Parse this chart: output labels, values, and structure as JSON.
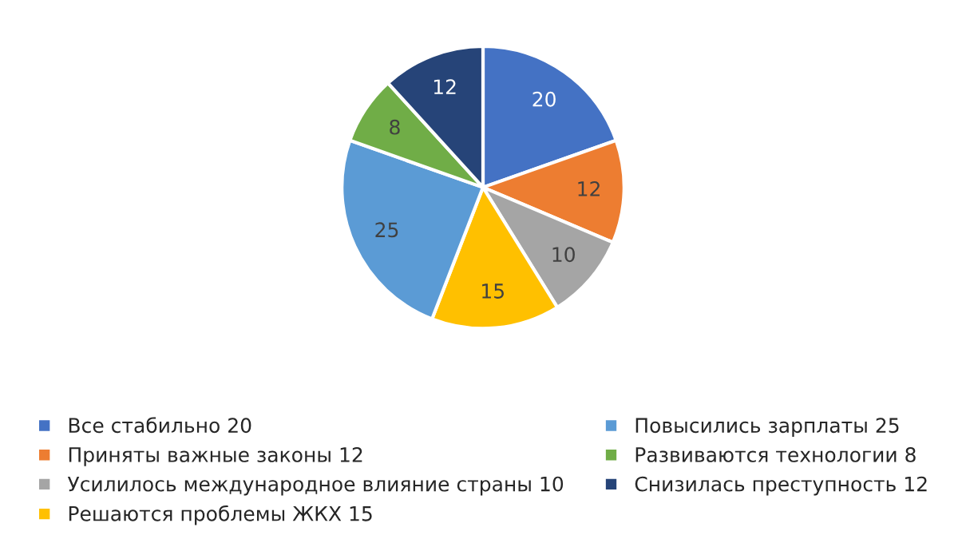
{
  "chart_data": {
    "type": "pie",
    "categories": [
      "Все стабильно 20",
      "Приняты важные законы 12",
      "Усилилось международное влияние страны 10",
      "Решаются проблемы ЖКХ 15",
      "Повысились зарплаты 25",
      "Развиваются технологии 8",
      "Снизилась преступность 12"
    ],
    "values": [
      20,
      12,
      10,
      15,
      25,
      8,
      12
    ],
    "colors": [
      "#4472c4",
      "#ed7d31",
      "#a5a5a5",
      "#ffc000",
      "#5b9bd5",
      "#70ad47",
      "#264478"
    ],
    "data_labels": true,
    "legend": "bottom"
  }
}
